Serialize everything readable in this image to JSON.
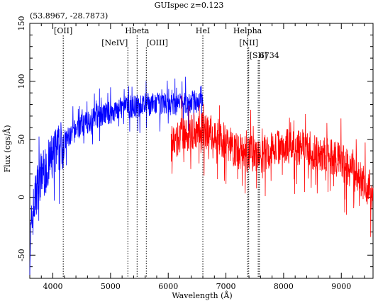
{
  "chart_data": {
    "type": "line",
    "title": "GUIspec z=0.123",
    "coordinates": "(53.8967, -28.7873)",
    "xlabel": "Wavelength (Å)",
    "ylabel": "Flux (cgs/Å)",
    "xlim": [
      3600,
      9550
    ],
    "ylim": [
      -70,
      150
    ],
    "xticks": [
      4000,
      5000,
      6000,
      7000,
      8000,
      9000
    ],
    "yticks": [
      -50,
      0,
      50,
      100,
      150
    ],
    "grid": false,
    "series": [
      {
        "color": "#0000ff",
        "x": [
          3600,
          3650,
          3700,
          3750,
          3800,
          3850,
          3900,
          3950,
          4000,
          4100,
          4200,
          4300,
          4400,
          4500,
          4600,
          4700,
          4800,
          4900,
          5000,
          5100,
          5200,
          5300,
          5400,
          5500,
          5600,
          5700,
          5800,
          5900,
          6000,
          6100,
          6200,
          6300,
          6400,
          6500,
          6600
        ],
        "y": [
          -45,
          -15,
          0,
          15,
          18,
          22,
          25,
          30,
          35,
          42,
          48,
          53,
          58,
          62,
          65,
          68,
          70,
          72,
          73,
          75,
          77,
          78,
          78,
          79,
          80,
          80,
          80,
          81,
          80,
          80,
          81,
          81,
          82,
          83,
          88
        ]
      },
      {
        "color": "#ff0000",
        "x": [
          6050,
          6200,
          6400,
          6600,
          6800,
          7000,
          7200,
          7400,
          7600,
          7800,
          8000,
          8200,
          8400,
          8600,
          8800,
          9000,
          9200,
          9400,
          9550
        ],
        "y": [
          45,
          52,
          56,
          58,
          55,
          48,
          40,
          38,
          35,
          42,
          45,
          44,
          42,
          38,
          35,
          30,
          22,
          12,
          5
        ]
      }
    ],
    "annotations": [
      {
        "label": "[OII]",
        "x": 4180,
        "row": 1
      },
      {
        "label": "Hbeta",
        "x": 5460,
        "row": 1
      },
      {
        "label": "[NeIV]",
        "x": 5300,
        "row": 2
      },
      {
        "label": "[OIII]",
        "x": 5620,
        "row": 2
      },
      {
        "label": "HeI",
        "x": 6600,
        "row": 1
      },
      {
        "label": "Helpha",
        "x": 7375,
        "row": 1
      },
      {
        "label": "[NII]",
        "x": 7395,
        "row": 2
      },
      {
        "label": "[SII]",
        "x": 7560,
        "row": 3
      },
      {
        "label": "6734",
        "x": 7580,
        "row": 3
      }
    ]
  }
}
